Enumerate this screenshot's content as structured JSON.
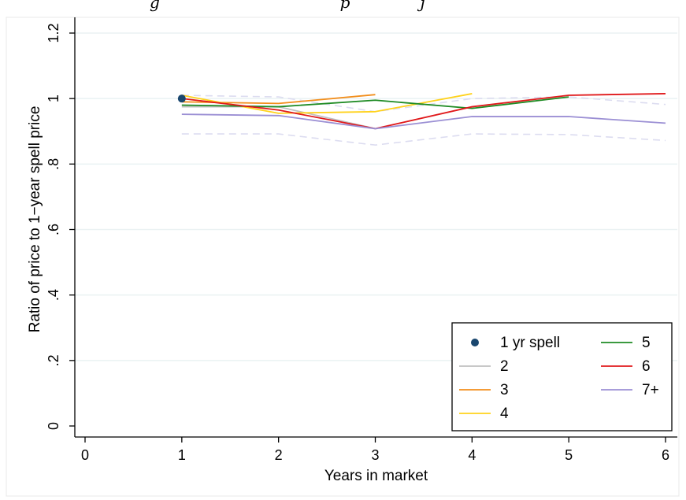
{
  "header": {
    "caption_fragment": "g                                    p              j"
  },
  "chart_data": {
    "type": "line",
    "xlabel": "Years in market",
    "ylabel": "Ratio of price to 1−year spell price",
    "xlim": [
      0,
      6
    ],
    "ylim": [
      0,
      1.2
    ],
    "x_ticks": [
      0,
      1,
      2,
      3,
      4,
      5,
      6
    ],
    "y_ticks": [
      0,
      0.2,
      0.4,
      0.6,
      0.8,
      1.0,
      1.2
    ],
    "x_tick_labels": [
      "0",
      "1",
      "2",
      "3",
      "4",
      "5",
      "6"
    ],
    "y_tick_labels": [
      "0",
      ".2",
      ".4",
      ".6",
      ".8",
      "1",
      "1.2"
    ],
    "grid": true,
    "legend_position": "bottom-right",
    "legend_columns": 2,
    "point_series": {
      "name": "1 yr spell",
      "x": [
        1
      ],
      "y": [
        1.0
      ],
      "color": "#1a476f"
    },
    "series": [
      {
        "name": "2",
        "color": "#c0c0c0",
        "x": [
          1,
          2,
          3
        ],
        "y": [
          0.975,
          0.975,
          0.908
        ]
      },
      {
        "name": "3",
        "color": "#f28e1c",
        "x": [
          1,
          2,
          3
        ],
        "y": [
          0.99,
          0.985,
          1.012
        ]
      },
      {
        "name": "4",
        "color": "#ffd21c",
        "x": [
          1,
          2,
          3,
          4
        ],
        "y": [
          1.01,
          0.955,
          0.96,
          1.015
        ]
      },
      {
        "name": "5",
        "color": "#1f8b24",
        "x": [
          1,
          2,
          3,
          4,
          5
        ],
        "y": [
          0.98,
          0.975,
          0.995,
          0.97,
          1.005
        ]
      },
      {
        "name": "6",
        "color": "#e0191b",
        "x": [
          1,
          2,
          3,
          4,
          5,
          6
        ],
        "y": [
          1.0,
          0.965,
          0.908,
          0.975,
          1.01,
          1.015
        ]
      },
      {
        "name": "7+",
        "color": "#9b8fd4",
        "x": [
          1,
          2,
          3,
          4,
          5,
          6
        ],
        "y": [
          0.952,
          0.948,
          0.908,
          0.945,
          0.945,
          0.925
        ]
      }
    ],
    "bands": {
      "color": "#dcdcf0",
      "upper": {
        "x": [
          1,
          2,
          3,
          4,
          5,
          6
        ],
        "y": [
          1.01,
          1.005,
          0.96,
          1.0,
          1.005,
          0.982
        ]
      },
      "lower": {
        "x": [
          1,
          2,
          3,
          4,
          5,
          6
        ],
        "y": [
          0.892,
          0.892,
          0.858,
          0.892,
          0.89,
          0.872
        ]
      }
    }
  }
}
